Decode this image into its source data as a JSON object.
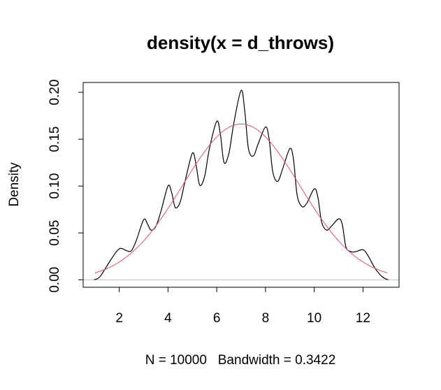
{
  "chart_data": {
    "type": "line",
    "title": "density(x = d_throws)",
    "xlabel": "N = 10000   Bandwidth = 0.3422",
    "ylabel": "Density",
    "xlim": [
      0.52,
      13.48
    ],
    "ylim": [
      -0.008,
      0.2105
    ],
    "x_ticks": [
      2,
      4,
      6,
      8,
      10,
      12
    ],
    "y_ticks": [
      0.0,
      0.05,
      0.1,
      0.15,
      0.2
    ],
    "x_tick_labels": [
      "2",
      "4",
      "6",
      "8",
      "10",
      "12"
    ],
    "y_tick_labels": [
      "0.00",
      "0.05",
      "0.10",
      "0.15",
      "0.20"
    ],
    "baseline": {
      "y": 0,
      "color": "#bebebe"
    },
    "series": [
      {
        "style": "kernel-density",
        "color": "#000000",
        "x": [
          0.97,
          1.2,
          1.5,
          1.8,
          2.0,
          2.15,
          2.3,
          2.5,
          2.7,
          3.0,
          3.15,
          3.3,
          3.5,
          3.7,
          4.0,
          4.15,
          4.3,
          4.5,
          4.7,
          5.0,
          5.15,
          5.3,
          5.5,
          5.7,
          6.0,
          6.15,
          6.3,
          6.5,
          6.7,
          7.0,
          7.15,
          7.3,
          7.5,
          7.7,
          8.0,
          8.15,
          8.3,
          8.5,
          8.7,
          9.0,
          9.15,
          9.3,
          9.5,
          9.7,
          10.0,
          10.15,
          10.3,
          10.5,
          10.7,
          11.0,
          11.15,
          11.3,
          11.5,
          11.7,
          12.0,
          12.2,
          12.5,
          12.8,
          13.03
        ],
        "y": [
          0.0,
          0.003,
          0.015,
          0.027,
          0.033,
          0.033,
          0.031,
          0.031,
          0.042,
          0.064,
          0.06,
          0.053,
          0.057,
          0.072,
          0.1,
          0.093,
          0.077,
          0.083,
          0.105,
          0.135,
          0.123,
          0.101,
          0.11,
          0.14,
          0.169,
          0.155,
          0.125,
          0.135,
          0.167,
          0.202,
          0.18,
          0.14,
          0.132,
          0.145,
          0.163,
          0.15,
          0.115,
          0.105,
          0.118,
          0.14,
          0.128,
          0.09,
          0.078,
          0.082,
          0.097,
          0.088,
          0.062,
          0.053,
          0.057,
          0.065,
          0.059,
          0.035,
          0.03,
          0.03,
          0.032,
          0.026,
          0.012,
          0.003,
          0.0
        ]
      },
      {
        "style": "normal-curve",
        "color": "#df536b",
        "mean": 7,
        "sd": 2.4,
        "x_range": [
          1,
          13
        ]
      }
    ]
  }
}
